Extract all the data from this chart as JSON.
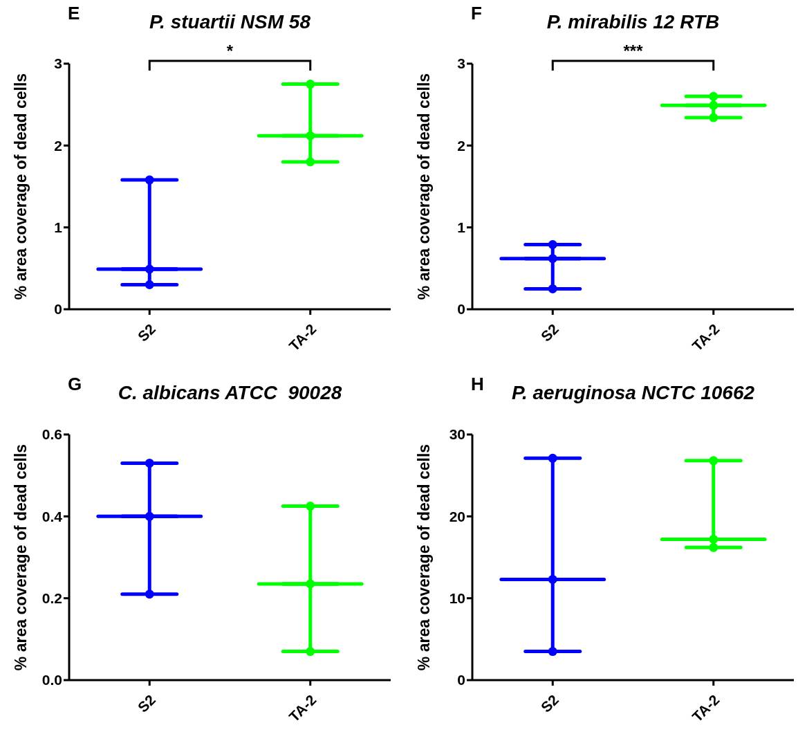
{
  "chart_data": [
    {
      "type": "box",
      "title": "P. stuartii NSM 58",
      "ylabel": "% area coverage of dead cells",
      "annotations": [
        "E",
        "*"
      ],
      "categories": [
        "S2",
        "TA-2"
      ],
      "colors": [
        "#0000ff",
        "#00ff00"
      ],
      "ylim": [
        0,
        3
      ],
      "yticks": [
        0,
        1,
        2,
        3
      ],
      "boxes": [
        {
          "low": 0.3,
          "q1": 0.49,
          "median": 0.49,
          "q3": 0.49,
          "high": 1.58
        },
        {
          "low": 1.8,
          "q1": 2.12,
          "median": 2.12,
          "q3": 2.12,
          "high": 2.75
        }
      ],
      "series": [
        {
          "type": "scatter",
          "color": "#0000ff",
          "x": [
            "S2",
            "S2",
            "S2"
          ],
          "values": [
            0.3,
            0.49,
            1.58
          ]
        },
        {
          "type": "scatter",
          "color": "#00ff00",
          "x": [
            "TA-2",
            "TA-2",
            "TA-2"
          ],
          "values": [
            1.8,
            2.12,
            2.75
          ]
        }
      ]
    },
    {
      "type": "box",
      "title": "P. mirabilis 12 RTB",
      "ylabel": "% area coverage of dead cells",
      "annotations": [
        "F",
        "***"
      ],
      "categories": [
        "S2",
        "TA-2"
      ],
      "colors": [
        "#0000ff",
        "#00ff00"
      ],
      "ylim": [
        0,
        3
      ],
      "yticks": [
        0,
        1,
        2,
        3
      ],
      "boxes": [
        {
          "low": 0.25,
          "q1": 0.62,
          "median": 0.62,
          "q3": 0.62,
          "high": 0.79
        },
        {
          "low": 2.34,
          "q1": 2.49,
          "median": 2.49,
          "q3": 2.49,
          "high": 2.6
        }
      ],
      "series": [
        {
          "type": "scatter",
          "color": "#0000ff",
          "x": [
            "S2",
            "S2",
            "S2"
          ],
          "values": [
            0.25,
            0.62,
            0.79
          ]
        },
        {
          "type": "scatter",
          "color": "#00ff00",
          "x": [
            "TA-2",
            "TA-2",
            "TA-2"
          ],
          "values": [
            2.34,
            2.49,
            2.6
          ]
        }
      ]
    },
    {
      "type": "box",
      "title": "C. albicans ATCC  90028",
      "ylabel": "% area coverage of dead cells",
      "annotations": [
        "G"
      ],
      "categories": [
        "S2",
        "TA-2"
      ],
      "colors": [
        "#0000ff",
        "#00ff00"
      ],
      "ylim": [
        0,
        0.6
      ],
      "yticks": [
        {
          "value": 0,
          "label": "0.0"
        },
        0.2,
        0.4,
        0.6
      ],
      "boxes": [
        {
          "low": 0.21,
          "q1": 0.4,
          "median": 0.4,
          "q3": 0.4,
          "high": 0.53
        },
        {
          "low": 0.07,
          "q1": 0.235,
          "median": 0.235,
          "q3": 0.235,
          "high": 0.425
        }
      ],
      "series": [
        {
          "type": "scatter",
          "color": "#0000ff",
          "x": [
            "S2",
            "S2",
            "S2"
          ],
          "values": [
            0.21,
            0.4,
            0.53
          ]
        },
        {
          "type": "scatter",
          "color": "#00ff00",
          "x": [
            "TA-2",
            "TA-2",
            "TA-2"
          ],
          "values": [
            0.07,
            0.235,
            0.425
          ]
        }
      ]
    },
    {
      "type": "box",
      "title": "P. aeruginosa NCTC 10662",
      "ylabel": "% area coverage of dead cells",
      "annotations": [
        "H"
      ],
      "categories": [
        "S2",
        "TA-2"
      ],
      "colors": [
        "#0000ff",
        "#00ff00"
      ],
      "ylim": [
        0,
        30
      ],
      "yticks": [
        0,
        10,
        20,
        30
      ],
      "boxes": [
        {
          "low": 3.5,
          "q1": 12.3,
          "median": 12.3,
          "q3": 12.3,
          "high": 27.1
        },
        {
          "low": 16.2,
          "q1": 17.2,
          "median": 17.2,
          "q3": 17.2,
          "high": 26.8
        }
      ],
      "series": [
        {
          "type": "scatter",
          "color": "#0000ff",
          "x": [
            "S2",
            "S2",
            "S2"
          ],
          "values": [
            3.5,
            12.3,
            27.1
          ]
        },
        {
          "type": "scatter",
          "color": "#00ff00",
          "x": [
            "TA-2",
            "TA-2",
            "TA-2"
          ],
          "values": [
            16.2,
            17.2,
            26.8
          ]
        }
      ]
    }
  ]
}
